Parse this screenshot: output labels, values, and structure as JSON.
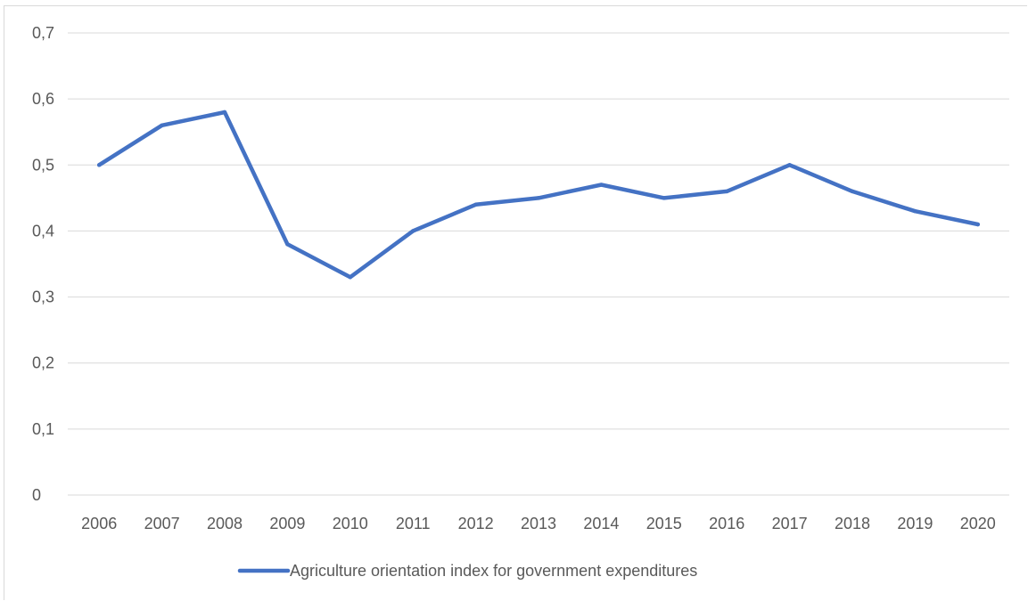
{
  "chart_data": {
    "type": "line",
    "title": "",
    "xlabel": "",
    "ylabel": "",
    "categories": [
      "2006",
      "2007",
      "2008",
      "2009",
      "2010",
      "2011",
      "2012",
      "2013",
      "2014",
      "2015",
      "2016",
      "2017",
      "2018",
      "2019",
      "2020"
    ],
    "series": [
      {
        "name": "Agriculture orientation index for government expenditures",
        "values": [
          0.5,
          0.56,
          0.58,
          0.38,
          0.33,
          0.4,
          0.44,
          0.45,
          0.47,
          0.45,
          0.46,
          0.5,
          0.46,
          0.43,
          0.41
        ],
        "color": "#4472c4"
      }
    ],
    "ylim": [
      0,
      0.7
    ],
    "yticks": [
      0,
      0.1,
      0.2,
      0.3,
      0.4,
      0.5,
      0.6,
      0.7
    ],
    "ytick_labels": [
      "0",
      "0,1",
      "0,2",
      "0,3",
      "0,4",
      "0,5",
      "0,6",
      "0,7"
    ],
    "grid": true,
    "legend_position": "bottom",
    "colors": {
      "line": "#4472c4",
      "grid": "#d9d9d9",
      "text": "#595959"
    }
  }
}
